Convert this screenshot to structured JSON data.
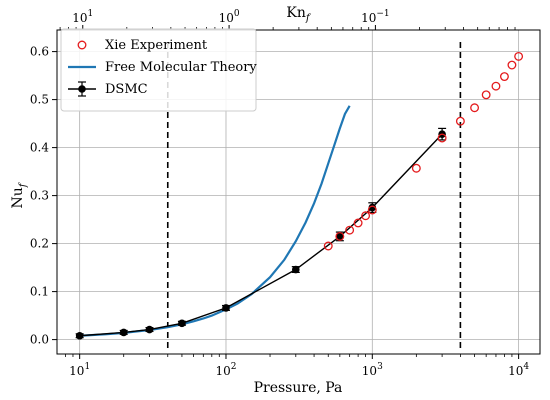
{
  "chart_data": {
    "type": "scatter",
    "xscale": "log",
    "xlim": [
      7,
      14000
    ],
    "ylim": [
      -0.03,
      0.645
    ],
    "grid": true,
    "xlabel": "Pressure, Pa",
    "ylabel": "Nu",
    "ylabel_sub": "f",
    "top_axis": {
      "label": "Kn",
      "label_sub": "f",
      "ticks": [
        {
          "label_base": "10",
          "label_exp": "1",
          "at_pressure": 10.5
        },
        {
          "label_base": "10",
          "label_exp": "0",
          "at_pressure": 105
        },
        {
          "label_base": "10",
          "label_exp": "−1",
          "at_pressure": 1050
        }
      ]
    },
    "x_ticks": [
      {
        "value": 10,
        "base": "10",
        "exp": "1"
      },
      {
        "value": 100,
        "base": "10",
        "exp": "2"
      },
      {
        "value": 1000,
        "base": "10",
        "exp": "3"
      },
      {
        "value": 10000,
        "base": "10",
        "exp": "4"
      }
    ],
    "y_ticks": [
      0.0,
      0.1,
      0.2,
      0.3,
      0.4,
      0.5,
      0.6
    ],
    "y_tick_labels": [
      "0.0",
      "0.1",
      "0.2",
      "0.3",
      "0.4",
      "0.5",
      "0.6"
    ],
    "legend": {
      "placement": "top-left",
      "entries": [
        "Xie Experiment",
        "Free Molecular Theory",
        "DSMC"
      ]
    },
    "vlines": [
      40,
      4000
    ],
    "series": [
      {
        "name": "Xie Experiment",
        "kind": "open-circles",
        "color": "#e41a1c",
        "x": [
          500,
          600,
          700,
          800,
          900,
          1000,
          2000,
          3000,
          4000,
          5000,
          6000,
          7000,
          8000,
          9000,
          10000
        ],
        "y": [
          0.195,
          0.215,
          0.228,
          0.243,
          0.258,
          0.27,
          0.357,
          0.42,
          0.455,
          0.483,
          0.51,
          0.528,
          0.548,
          0.572,
          0.59
        ]
      },
      {
        "name": "Free Molecular Theory",
        "kind": "line",
        "color": "#1f77b4",
        "x": [
          10,
          15,
          20,
          30,
          40,
          50,
          60,
          70,
          80,
          100,
          120,
          150,
          200,
          250,
          300,
          350,
          400,
          450,
          500,
          550,
          600,
          650,
          700
        ],
        "y": [
          0.008,
          0.011,
          0.014,
          0.02,
          0.026,
          0.032,
          0.038,
          0.044,
          0.05,
          0.063,
          0.075,
          0.095,
          0.13,
          0.166,
          0.205,
          0.244,
          0.284,
          0.325,
          0.367,
          0.405,
          0.44,
          0.47,
          0.487
        ]
      },
      {
        "name": "DSMC",
        "kind": "line-markers-errorbars",
        "color": "#000000",
        "x": [
          10,
          20,
          30,
          50,
          100,
          300,
          600,
          1000,
          3000
        ],
        "y": [
          0.008,
          0.015,
          0.021,
          0.034,
          0.066,
          0.146,
          0.215,
          0.275,
          0.428
        ],
        "err": [
          0.004,
          0.004,
          0.004,
          0.004,
          0.005,
          0.006,
          0.009,
          0.01,
          0.012
        ]
      }
    ]
  }
}
